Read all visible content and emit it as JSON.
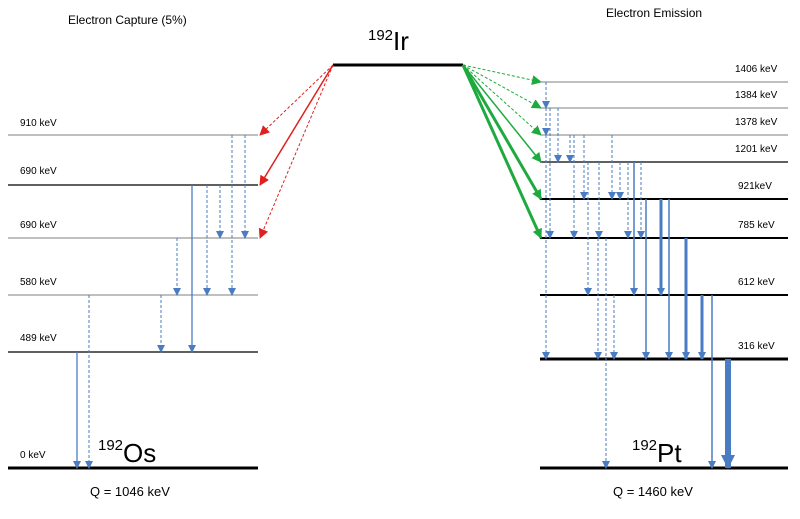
{
  "center": {
    "mass": "192",
    "element": "Ir"
  },
  "left": {
    "title": "Electron Capture (5%)",
    "daughter": {
      "mass": "192",
      "element": "Os"
    },
    "q_value": "Q = 1046 keV",
    "levels": [
      "910 keV",
      "690 keV",
      "690 keV",
      "580 keV",
      "489 keV",
      "0 keV"
    ]
  },
  "right": {
    "title": "Electron Emission",
    "daughter": {
      "mass": "192",
      "element": "Pt"
    },
    "q_value": "Q = 1460 keV",
    "levels": [
      "1406 keV",
      "1384 keV",
      "1378 keV",
      "1201 keV",
      "921keV",
      "785 keV",
      "612 keV",
      "316 keV"
    ]
  },
  "colors": {
    "line": "#000000",
    "level_thin": "#7f7f7f",
    "electron_capture": "#e0201f",
    "beta_emission": "#1faa3f",
    "gamma": "#4a7cc4"
  }
}
